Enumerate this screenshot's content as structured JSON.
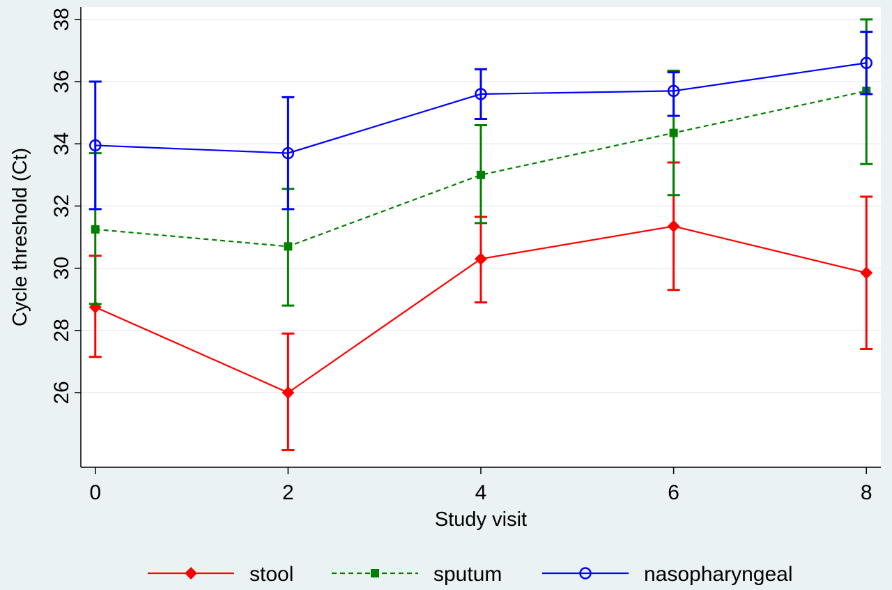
{
  "chart_data": {
    "type": "line",
    "title": "",
    "xlabel": "Study visit",
    "ylabel": "Cycle threshold (Ct)",
    "x": [
      0,
      2,
      4,
      6,
      8
    ],
    "xticks": [
      "0",
      "2",
      "4",
      "6",
      "8"
    ],
    "yticks": [
      "26",
      "28",
      "30",
      "32",
      "34",
      "36",
      "38"
    ],
    "xlim": [
      -0.15,
      8.15
    ],
    "ylim": [
      23.6,
      38.4
    ],
    "grid": true,
    "legend_position": "bottom",
    "series": [
      {
        "name": "stool",
        "color": "#ff0000",
        "dash": "solid",
        "marker": "diamond",
        "values": [
          28.75,
          26.0,
          30.3,
          31.35,
          29.85
        ],
        "ci_low": [
          27.15,
          24.15,
          28.9,
          29.3,
          27.4
        ],
        "ci_high": [
          30.4,
          27.9,
          31.65,
          33.4,
          32.3
        ]
      },
      {
        "name": "sputum",
        "color": "#008000",
        "dash": "dash",
        "marker": "square",
        "values": [
          31.25,
          30.7,
          33.0,
          34.35,
          35.7
        ],
        "ci_low": [
          28.85,
          28.8,
          31.45,
          32.35,
          33.35
        ],
        "ci_high": [
          33.7,
          32.55,
          34.6,
          36.35,
          38.0
        ]
      },
      {
        "name": "nasopharyngeal",
        "color": "#0000ff",
        "dash": "solid",
        "marker": "circle-open",
        "values": [
          33.95,
          33.7,
          35.6,
          35.7,
          36.6
        ],
        "ci_low": [
          31.9,
          31.9,
          34.8,
          34.9,
          35.6
        ],
        "ci_high": [
          36.0,
          35.5,
          36.4,
          36.3,
          37.6
        ]
      }
    ]
  }
}
